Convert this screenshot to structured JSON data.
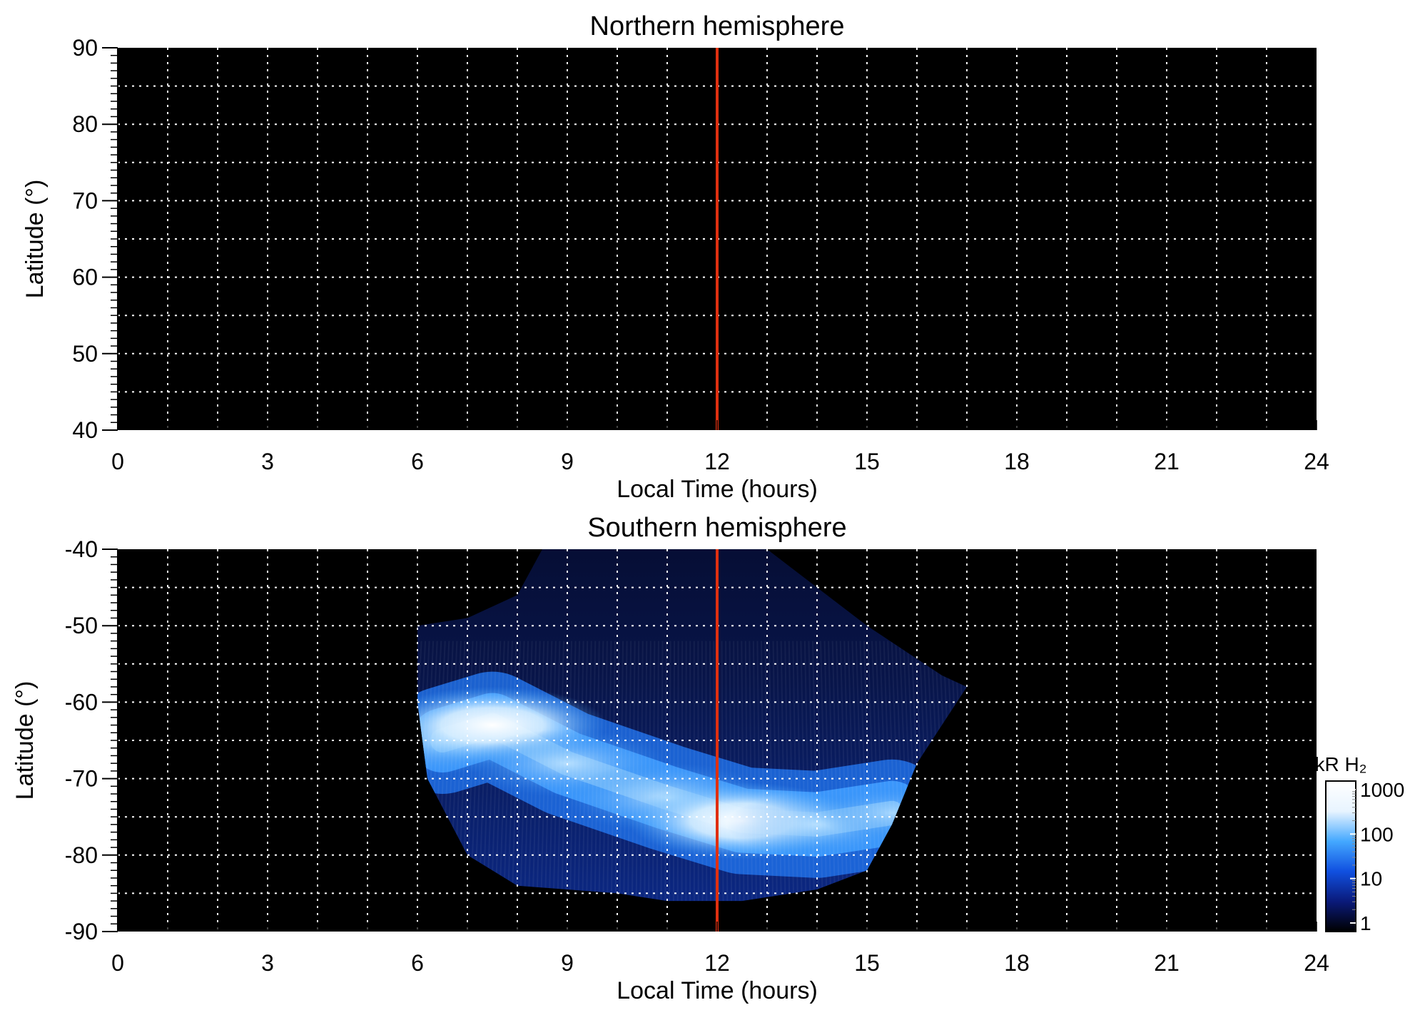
{
  "chart_data": [
    {
      "type": "heatmap",
      "title": "Northern hemisphere",
      "xlabel": "Local Time (hours)",
      "ylabel": "Latitude (°)",
      "xlim": [
        0,
        24
      ],
      "ylim": [
        40,
        90
      ],
      "xticks": [
        "0",
        "3",
        "6",
        "9",
        "12",
        "15",
        "18",
        "21",
        "24"
      ],
      "yticks": [
        "90",
        "80",
        "70",
        "60",
        "50",
        "40"
      ],
      "grid": true,
      "grid_x_step": 1,
      "grid_y_step": 5,
      "reference_line": {
        "x": 12,
        "color": "#e03010"
      },
      "emission": "none"
    },
    {
      "type": "heatmap",
      "title": "Southern hemisphere",
      "xlabel": "Local Time (hours)",
      "ylabel": "Latitude (°)",
      "xlim": [
        0,
        24
      ],
      "ylim": [
        -90,
        -40
      ],
      "xticks": [
        "0",
        "3",
        "6",
        "9",
        "12",
        "15",
        "18",
        "21",
        "24"
      ],
      "yticks": [
        "-40",
        "-50",
        "-60",
        "-70",
        "-80",
        "-90"
      ],
      "grid": true,
      "grid_x_step": 1,
      "grid_y_step": 5,
      "reference_line": {
        "x": 12,
        "color": "#e03010"
      },
      "coverage_region": [
        [
          6,
          -50
        ],
        [
          7,
          -49
        ],
        [
          8,
          -46
        ],
        [
          8.5,
          -40
        ],
        [
          13,
          -40
        ],
        [
          15,
          -50
        ],
        [
          16.5,
          -56.5
        ],
        [
          17,
          -58
        ],
        [
          16,
          -68
        ],
        [
          15.5,
          -76
        ],
        [
          15,
          -82
        ],
        [
          14,
          -84.5
        ],
        [
          13,
          -85.5
        ],
        [
          12.5,
          -86
        ],
        [
          11,
          -86
        ],
        [
          10,
          -85
        ],
        [
          8,
          -84
        ],
        [
          7,
          -80
        ],
        [
          6.2,
          -70
        ],
        [
          6,
          -60
        ]
      ],
      "auroral_oval": [
        {
          "lt": 6.5,
          "lat": -65,
          "kR": 300
        },
        {
          "lt": 7.5,
          "lat": -63,
          "kR": 1000
        },
        {
          "lt": 9,
          "lat": -68,
          "kR": 300
        },
        {
          "lt": 11,
          "lat": -72.5,
          "kR": 400
        },
        {
          "lt": 12.5,
          "lat": -75.5,
          "kR": 1000
        },
        {
          "lt": 14,
          "lat": -76,
          "kR": 150
        },
        {
          "lt": 15.5,
          "lat": -74.5,
          "kR": 40
        }
      ],
      "colorbar": {
        "label": "kR H₂",
        "scale": "log",
        "range": [
          1,
          1000
        ],
        "ticks": [
          "1000",
          "100",
          "10",
          "1"
        ],
        "colors": [
          "#000000",
          "#0a1a7a",
          "#1050e0",
          "#44a8ff",
          "#e8f4ff",
          "#ffffff"
        ]
      }
    }
  ]
}
